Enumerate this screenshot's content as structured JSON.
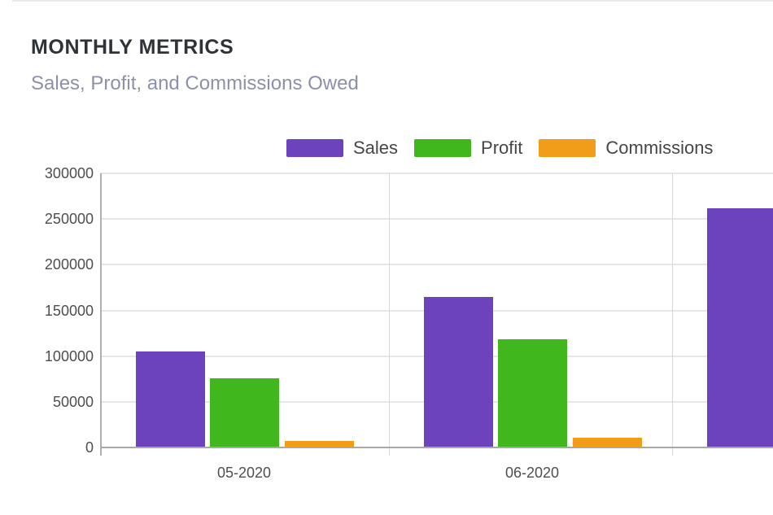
{
  "page": {
    "title": "MONTHLY METRICS",
    "subtitle": "Sales, Profit, and Commissions Owed"
  },
  "legend": {
    "items": [
      {
        "label": "Sales",
        "color": "#6c43bd"
      },
      {
        "label": "Profit",
        "color": "#41b71e"
      },
      {
        "label": "Commissions",
        "color": "#f29d1a"
      }
    ]
  },
  "chart_data": {
    "type": "bar",
    "categories": [
      "05-2020",
      "06-2020",
      ""
    ],
    "series": [
      {
        "name": "Sales",
        "color": "#6c43bd",
        "values": [
          105000,
          165000,
          262000
        ]
      },
      {
        "name": "Profit",
        "color": "#41b71e",
        "values": [
          76000,
          118000,
          null
        ]
      },
      {
        "name": "Commissions",
        "color": "#f29d1a",
        "values": [
          7000,
          11000,
          null
        ]
      }
    ],
    "title": "MONTHLY METRICS",
    "subtitle": "Sales, Profit, and Commissions Owed",
    "xlabel": "",
    "ylabel": "",
    "ylim": [
      0,
      300000
    ],
    "yticks": [
      0,
      50000,
      100000,
      150000,
      200000,
      250000,
      300000
    ],
    "grid": true,
    "legend_position": "top",
    "note": "Third category group is clipped at the right edge of the viewport; only its Sales bar is partially visible."
  },
  "colors": {
    "title_text": "#2f3338",
    "subtitle_text": "#8d90ab",
    "tick_text": "#4e4e4e",
    "gridline": "#e6e6e6",
    "axis_line": "#a8a8a8"
  }
}
